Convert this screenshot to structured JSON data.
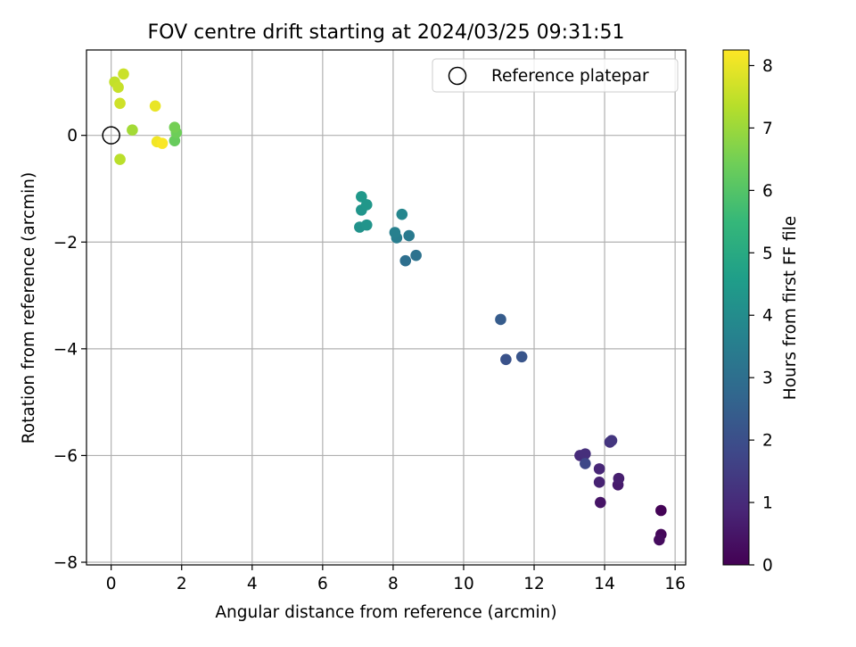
{
  "chart_data": {
    "type": "scatter",
    "title": "FOV centre drift starting at 2024/03/25 09:31:51",
    "xlabel": "Angular distance from reference (arcmin)",
    "ylabel": "Rotation from reference (arcmin)",
    "xlim": [
      -0.7,
      16.3
    ],
    "ylim": [
      -8.05,
      1.6
    ],
    "x_ticks": [
      0,
      2,
      4,
      6,
      8,
      10,
      12,
      14,
      16
    ],
    "y_ticks": [
      0,
      -2,
      -4,
      -6,
      -8
    ],
    "grid": true,
    "legend": {
      "position": "top-right",
      "entries": [
        {
          "label": "Reference platepar",
          "marker": "open-circle",
          "x": 0,
          "y": 0
        }
      ]
    },
    "colorbar": {
      "label": "Hours from first FF file",
      "colormap": "viridis",
      "range": [
        0,
        8.25
      ],
      "ticks": [
        0,
        1,
        2,
        3,
        4,
        5,
        6,
        7,
        8
      ]
    },
    "points": [
      {
        "x": 15.6,
        "y": -7.03,
        "hours": 0.05
      },
      {
        "x": 15.6,
        "y": -7.48,
        "hours": 0.15
      },
      {
        "x": 15.55,
        "y": -7.58,
        "hours": 0.25
      },
      {
        "x": 13.88,
        "y": -6.88,
        "hours": 0.45
      },
      {
        "x": 14.38,
        "y": -6.55,
        "hours": 0.6
      },
      {
        "x": 14.4,
        "y": -6.43,
        "hours": 0.7
      },
      {
        "x": 13.85,
        "y": -6.5,
        "hours": 0.8
      },
      {
        "x": 13.85,
        "y": -6.25,
        "hours": 0.9
      },
      {
        "x": 13.3,
        "y": -6.0,
        "hours": 1.0
      },
      {
        "x": 13.45,
        "y": -5.97,
        "hours": 1.1
      },
      {
        "x": 14.15,
        "y": -5.75,
        "hours": 1.2
      },
      {
        "x": 14.2,
        "y": -5.72,
        "hours": 1.3
      },
      {
        "x": 13.45,
        "y": -6.15,
        "hours": 1.8
      },
      {
        "x": 11.2,
        "y": -4.2,
        "hours": 2.1
      },
      {
        "x": 11.65,
        "y": -4.15,
        "hours": 2.2
      },
      {
        "x": 11.05,
        "y": -3.45,
        "hours": 2.4
      },
      {
        "x": 8.35,
        "y": -2.35,
        "hours": 3.0
      },
      {
        "x": 8.65,
        "y": -2.25,
        "hours": 3.1
      },
      {
        "x": 8.45,
        "y": -1.88,
        "hours": 3.4
      },
      {
        "x": 8.1,
        "y": -1.92,
        "hours": 3.5
      },
      {
        "x": 8.05,
        "y": -1.82,
        "hours": 3.6
      },
      {
        "x": 8.25,
        "y": -1.48,
        "hours": 3.8
      },
      {
        "x": 7.05,
        "y": -1.72,
        "hours": 4.2
      },
      {
        "x": 7.25,
        "y": -1.68,
        "hours": 4.25
      },
      {
        "x": 7.1,
        "y": -1.4,
        "hours": 4.3
      },
      {
        "x": 7.25,
        "y": -1.3,
        "hours": 4.35
      },
      {
        "x": 7.1,
        "y": -1.15,
        "hours": 4.4
      },
      {
        "x": 1.8,
        "y": -0.1,
        "hours": 6.3
      },
      {
        "x": 1.85,
        "y": 0.05,
        "hours": 6.4
      },
      {
        "x": 1.8,
        "y": 0.15,
        "hours": 6.5
      },
      {
        "x": 0.6,
        "y": 0.1,
        "hours": 7.1
      },
      {
        "x": 0.25,
        "y": -0.45,
        "hours": 7.4
      },
      {
        "x": 0.1,
        "y": 1.0,
        "hours": 7.5
      },
      {
        "x": 0.2,
        "y": 0.9,
        "hours": 7.55
      },
      {
        "x": 0.35,
        "y": 1.15,
        "hours": 7.6
      },
      {
        "x": 0.25,
        "y": 0.6,
        "hours": 7.65
      },
      {
        "x": 1.25,
        "y": 0.55,
        "hours": 8.0
      },
      {
        "x": 1.3,
        "y": -0.12,
        "hours": 8.1
      },
      {
        "x": 1.45,
        "y": -0.15,
        "hours": 8.2
      }
    ]
  }
}
